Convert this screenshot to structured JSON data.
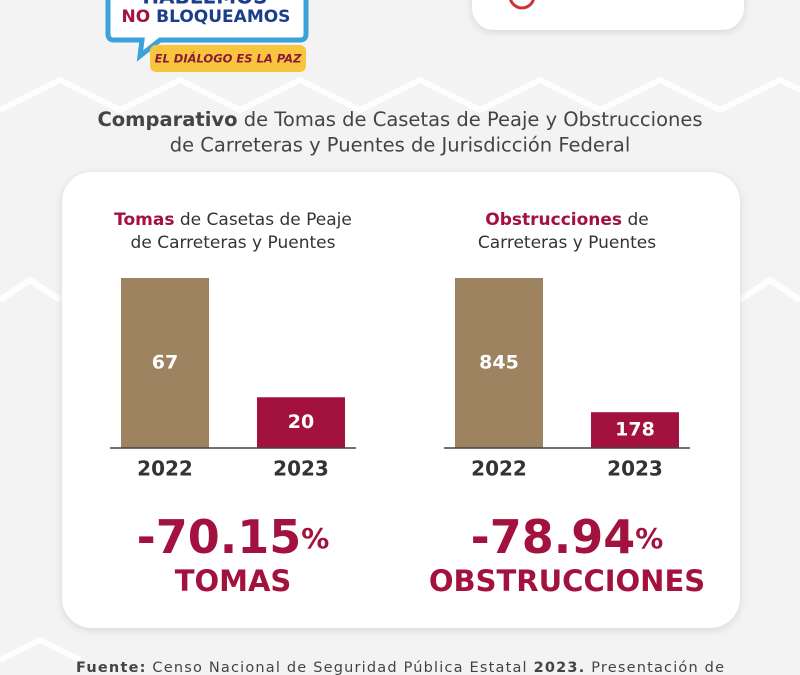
{
  "logo": {
    "line1": "HABLEMOS",
    "line2_a": "NO",
    "line2_b": "BLOQUEAMOS",
    "tagline": "EL DIÁLOGO ES LA PAZ"
  },
  "heading": {
    "bold": "Comparativo",
    "line1_rest": "de Tomas de Casetas de Peaje y Obstrucciones",
    "line2": "de Carreteras y Puentes de Jurisdicción Federal"
  },
  "chart_data": [
    {
      "type": "bar",
      "title_highlight": "Tomas",
      "title_line1_rest": "de Casetas de Peaje",
      "title_line2": "de Carreteras y Puentes",
      "categories": [
        "2022",
        "2023"
      ],
      "values": [
        67,
        20
      ],
      "colors": [
        "#9e8360",
        "#a3123f"
      ],
      "change": "-70.15",
      "change_unit": "%",
      "change_label": "TOMAS"
    },
    {
      "type": "bar",
      "title_highlight": "Obstrucciones",
      "title_line1_rest": "de",
      "title_line2": "Carreteras y Puentes",
      "categories": [
        "2022",
        "2023"
      ],
      "values": [
        845,
        178
      ],
      "colors": [
        "#9e8360",
        "#a3123f"
      ],
      "change": "-78.94",
      "change_unit": "%",
      "change_label": "OBSTRUCCIONES"
    }
  ],
  "footer": {
    "label": "Fuente:",
    "text": "Censo Nacional de Seguridad Pública Estatal",
    "year": "2023.",
    "rest": "Presentación de"
  }
}
